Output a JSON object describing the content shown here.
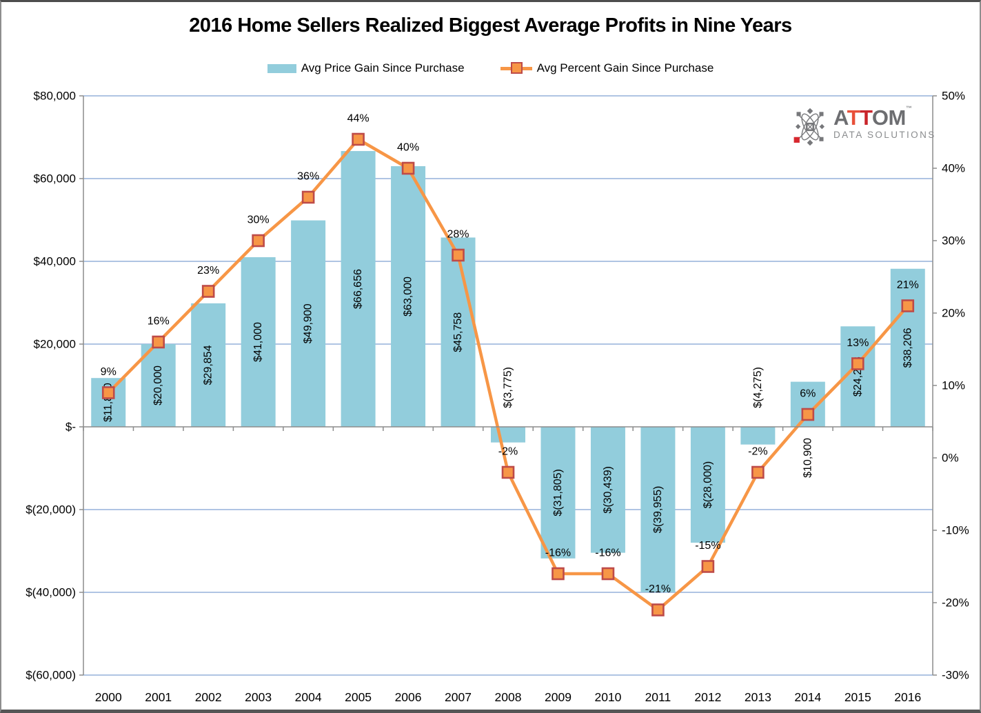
{
  "frame": {
    "title": "2016 Home Sellers Realized Biggest Average Profits in Nine Years"
  },
  "legend": [
    {
      "label": "Avg Price Gain Since Purchase",
      "swatch": "bar",
      "color": "#92CDDC"
    },
    {
      "label": "Avg Percent Gain Since Purchase",
      "swatch": "line",
      "color": "#F79646",
      "marker_border": "#BE4B48"
    }
  ],
  "logo": {
    "brand": {
      "a": "A",
      "t1": "T",
      "t2": "T",
      "om": "OM"
    },
    "tm": "™",
    "subtitle": "DATA SOLUTIONS",
    "gray": "#6D6E71",
    "red": "#D7282F"
  },
  "chart_data": {
    "type": "combo",
    "categories": [
      "2000",
      "2001",
      "2002",
      "2003",
      "2004",
      "2005",
      "2006",
      "2007",
      "2008",
      "2009",
      "2010",
      "2011",
      "2012",
      "2013",
      "2014",
      "2015",
      "2016"
    ],
    "series": [
      {
        "name": "Avg Price Gain Since Purchase",
        "type": "bar",
        "yaxis": "left",
        "color": "#92CDDC",
        "values": [
          11800,
          20000,
          29854,
          41000,
          49900,
          66656,
          63000,
          45758,
          -3775,
          -31805,
          -30439,
          -39955,
          -28000,
          -4275,
          10900,
          24288,
          38206
        ],
        "labels": [
          "$11,800",
          "$20,000",
          "$29,854",
          "$41,000",
          "$49,900",
          "$66,656",
          "$63,000",
          "$45,758",
          "$(3,775)",
          "$(31,805)",
          "$(30,439)",
          "$(39,955)",
          "$(28,000)",
          "$(4,275)",
          "$10,900",
          "$24,288",
          "$38,206"
        ],
        "label_positions": [
          "center",
          "center",
          "center",
          "center",
          "center",
          "center",
          "center",
          "center",
          "above-axis",
          "center",
          "center",
          "center",
          "center",
          "above-axis",
          "below-axis",
          "center",
          "center"
        ]
      },
      {
        "name": "Avg Percent Gain Since Purchase",
        "type": "line",
        "yaxis": "right",
        "color": "#F79646",
        "marker_border": "#BE4B48",
        "values": [
          9,
          16,
          23,
          30,
          36,
          44,
          40,
          28,
          -2,
          -16,
          -16,
          -21,
          -15,
          -2,
          6,
          13,
          21
        ],
        "labels": [
          "9%",
          "16%",
          "23%",
          "30%",
          "36%",
          "44%",
          "40%",
          "28%",
          "-2%",
          "-16%",
          "-16%",
          "-21%",
          "-15%",
          "-2%",
          "6%",
          "13%",
          "21%"
        ]
      }
    ],
    "left_axis": {
      "min": -60000,
      "max": 80000,
      "step": 20000,
      "tick_labels": [
        "$80,000",
        "$60,000",
        "$40,000",
        "$20,000",
        "$-",
        "$(20,000)",
        "$(40,000)",
        "$(60,000)"
      ]
    },
    "right_axis": {
      "min": -30,
      "max": 50,
      "step": 10,
      "tick_labels": [
        "50%",
        "40%",
        "30%",
        "20%",
        "10%",
        "0%",
        "-10%",
        "-20%",
        "-30%"
      ]
    },
    "grid_on": true,
    "grid_color": "#AFC4E3",
    "axis_color": "#8C8C8C",
    "text_color": "#000000"
  }
}
